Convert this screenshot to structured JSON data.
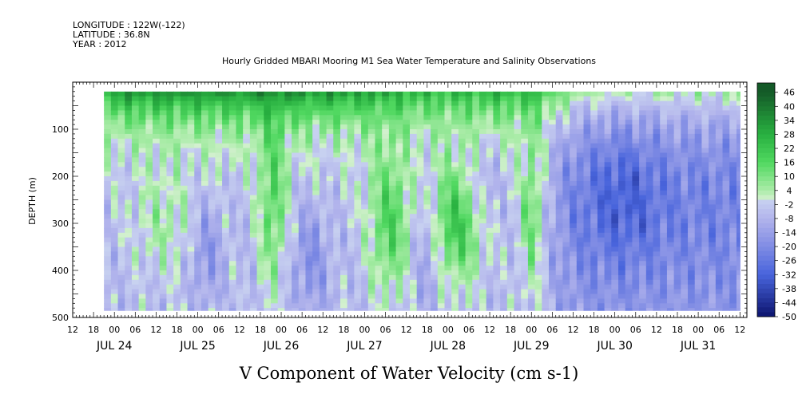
{
  "header": {
    "longitude": "LONGITUDE : 122W(-122)",
    "latitude": "LATITUDE : 36.8N",
    "year": "YEAR : 2012"
  },
  "chart_data": {
    "type": "heatmap",
    "title": "Hourly Gridded MBARI Mooring M1 Sea Water Temperature and Salinity Observations",
    "xlabel": "V Component of Water Velocity (cm s-1)",
    "ylabel": "DEPTH (m)",
    "ylim": [
      500,
      0
    ],
    "y_tick_labels": [
      "100",
      "200",
      "300",
      "400",
      "500"
    ],
    "y_ticks": [
      100,
      200,
      300,
      400,
      500
    ],
    "x_range_hours": [
      "2012-07-23T12:00",
      "2012-07-31T14:00"
    ],
    "data_range_hours": [
      "2012-07-23T21:00",
      "2012-07-31T12:00"
    ],
    "depth_range_data": [
      20,
      485
    ],
    "x_hour_labels": [
      "12",
      "18",
      "00",
      "06",
      "12",
      "18",
      "00",
      "06",
      "12",
      "18",
      "00",
      "06",
      "12",
      "18",
      "00",
      "06",
      "12",
      "18",
      "00",
      "06",
      "12",
      "18",
      "00",
      "06",
      "12",
      "18",
      "00",
      "06",
      "12",
      "18",
      "00",
      "06",
      "12"
    ],
    "x_day_labels": [
      "JUL 24",
      "JUL 25",
      "JUL 26",
      "JUL 27",
      "JUL 28",
      "JUL 29",
      "JUL 30",
      "JUL 31"
    ],
    "colorbar": {
      "labels": [
        "46",
        "40",
        "34",
        "28",
        "22",
        "16",
        "10",
        "4",
        "-2",
        "-8",
        "-14",
        "-20",
        "-26",
        "-32",
        "-38",
        "-44",
        "-50"
      ],
      "range": [
        -50,
        50
      ]
    },
    "pattern_summary": {
      "near_surface_max": 46,
      "deep_min": -30,
      "positive_tongues_days": [
        "2012-07-25",
        "2012-07-26",
        "2012-07-27",
        "2012-07-28",
        "2012-07-29"
      ],
      "negative_period": [
        "2012-07-29T06:00",
        "2012-07-31T12:00"
      ]
    }
  }
}
